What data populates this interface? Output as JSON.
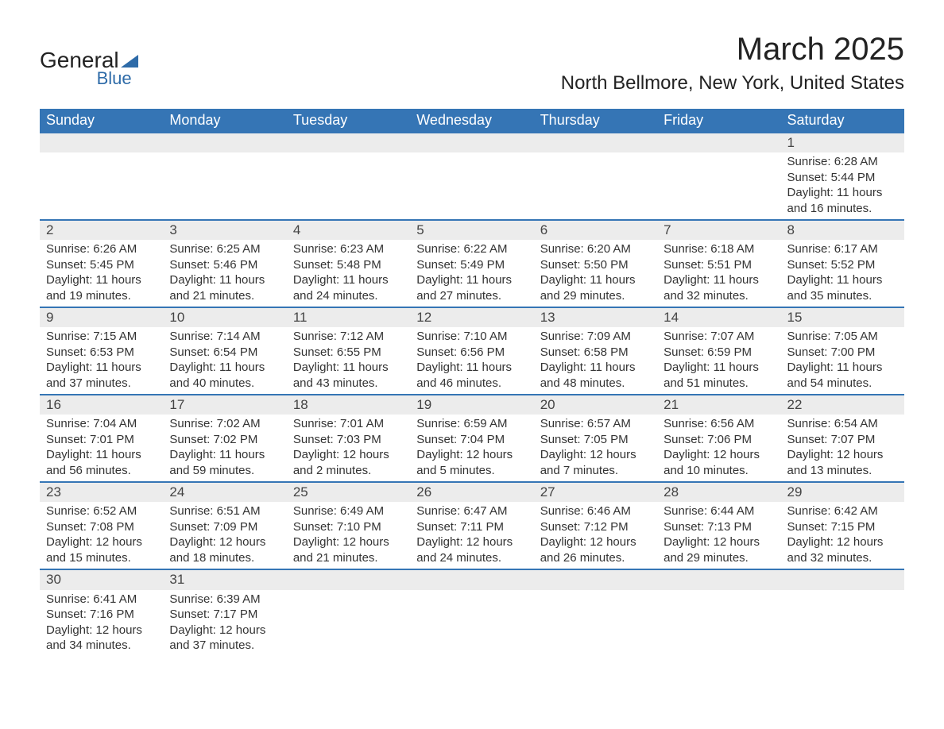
{
  "logo": {
    "word1": "General",
    "word2": "Blue"
  },
  "title": "March 2025",
  "location": "North Bellmore, New York, United States",
  "colors": {
    "header_bg": "#3575b5",
    "header_text": "#ffffff",
    "daynum_bg": "#ececec",
    "row_border": "#3575b5",
    "text": "#333333",
    "logo_accent": "#2e6ba8",
    "background": "#ffffff"
  },
  "typography": {
    "title_fontsize": 40,
    "location_fontsize": 24,
    "header_fontsize": 18,
    "cell_fontsize": 15
  },
  "day_headers": [
    "Sunday",
    "Monday",
    "Tuesday",
    "Wednesday",
    "Thursday",
    "Friday",
    "Saturday"
  ],
  "weeks": [
    [
      null,
      null,
      null,
      null,
      null,
      null,
      {
        "n": "1",
        "rise": "Sunrise: 6:28 AM",
        "set": "Sunset: 5:44 PM",
        "d1": "Daylight: 11 hours",
        "d2": "and 16 minutes."
      }
    ],
    [
      {
        "n": "2",
        "rise": "Sunrise: 6:26 AM",
        "set": "Sunset: 5:45 PM",
        "d1": "Daylight: 11 hours",
        "d2": "and 19 minutes."
      },
      {
        "n": "3",
        "rise": "Sunrise: 6:25 AM",
        "set": "Sunset: 5:46 PM",
        "d1": "Daylight: 11 hours",
        "d2": "and 21 minutes."
      },
      {
        "n": "4",
        "rise": "Sunrise: 6:23 AM",
        "set": "Sunset: 5:48 PM",
        "d1": "Daylight: 11 hours",
        "d2": "and 24 minutes."
      },
      {
        "n": "5",
        "rise": "Sunrise: 6:22 AM",
        "set": "Sunset: 5:49 PM",
        "d1": "Daylight: 11 hours",
        "d2": "and 27 minutes."
      },
      {
        "n": "6",
        "rise": "Sunrise: 6:20 AM",
        "set": "Sunset: 5:50 PM",
        "d1": "Daylight: 11 hours",
        "d2": "and 29 minutes."
      },
      {
        "n": "7",
        "rise": "Sunrise: 6:18 AM",
        "set": "Sunset: 5:51 PM",
        "d1": "Daylight: 11 hours",
        "d2": "and 32 minutes."
      },
      {
        "n": "8",
        "rise": "Sunrise: 6:17 AM",
        "set": "Sunset: 5:52 PM",
        "d1": "Daylight: 11 hours",
        "d2": "and 35 minutes."
      }
    ],
    [
      {
        "n": "9",
        "rise": "Sunrise: 7:15 AM",
        "set": "Sunset: 6:53 PM",
        "d1": "Daylight: 11 hours",
        "d2": "and 37 minutes."
      },
      {
        "n": "10",
        "rise": "Sunrise: 7:14 AM",
        "set": "Sunset: 6:54 PM",
        "d1": "Daylight: 11 hours",
        "d2": "and 40 minutes."
      },
      {
        "n": "11",
        "rise": "Sunrise: 7:12 AM",
        "set": "Sunset: 6:55 PM",
        "d1": "Daylight: 11 hours",
        "d2": "and 43 minutes."
      },
      {
        "n": "12",
        "rise": "Sunrise: 7:10 AM",
        "set": "Sunset: 6:56 PM",
        "d1": "Daylight: 11 hours",
        "d2": "and 46 minutes."
      },
      {
        "n": "13",
        "rise": "Sunrise: 7:09 AM",
        "set": "Sunset: 6:58 PM",
        "d1": "Daylight: 11 hours",
        "d2": "and 48 minutes."
      },
      {
        "n": "14",
        "rise": "Sunrise: 7:07 AM",
        "set": "Sunset: 6:59 PM",
        "d1": "Daylight: 11 hours",
        "d2": "and 51 minutes."
      },
      {
        "n": "15",
        "rise": "Sunrise: 7:05 AM",
        "set": "Sunset: 7:00 PM",
        "d1": "Daylight: 11 hours",
        "d2": "and 54 minutes."
      }
    ],
    [
      {
        "n": "16",
        "rise": "Sunrise: 7:04 AM",
        "set": "Sunset: 7:01 PM",
        "d1": "Daylight: 11 hours",
        "d2": "and 56 minutes."
      },
      {
        "n": "17",
        "rise": "Sunrise: 7:02 AM",
        "set": "Sunset: 7:02 PM",
        "d1": "Daylight: 11 hours",
        "d2": "and 59 minutes."
      },
      {
        "n": "18",
        "rise": "Sunrise: 7:01 AM",
        "set": "Sunset: 7:03 PM",
        "d1": "Daylight: 12 hours",
        "d2": "and 2 minutes."
      },
      {
        "n": "19",
        "rise": "Sunrise: 6:59 AM",
        "set": "Sunset: 7:04 PM",
        "d1": "Daylight: 12 hours",
        "d2": "and 5 minutes."
      },
      {
        "n": "20",
        "rise": "Sunrise: 6:57 AM",
        "set": "Sunset: 7:05 PM",
        "d1": "Daylight: 12 hours",
        "d2": "and 7 minutes."
      },
      {
        "n": "21",
        "rise": "Sunrise: 6:56 AM",
        "set": "Sunset: 7:06 PM",
        "d1": "Daylight: 12 hours",
        "d2": "and 10 minutes."
      },
      {
        "n": "22",
        "rise": "Sunrise: 6:54 AM",
        "set": "Sunset: 7:07 PM",
        "d1": "Daylight: 12 hours",
        "d2": "and 13 minutes."
      }
    ],
    [
      {
        "n": "23",
        "rise": "Sunrise: 6:52 AM",
        "set": "Sunset: 7:08 PM",
        "d1": "Daylight: 12 hours",
        "d2": "and 15 minutes."
      },
      {
        "n": "24",
        "rise": "Sunrise: 6:51 AM",
        "set": "Sunset: 7:09 PM",
        "d1": "Daylight: 12 hours",
        "d2": "and 18 minutes."
      },
      {
        "n": "25",
        "rise": "Sunrise: 6:49 AM",
        "set": "Sunset: 7:10 PM",
        "d1": "Daylight: 12 hours",
        "d2": "and 21 minutes."
      },
      {
        "n": "26",
        "rise": "Sunrise: 6:47 AM",
        "set": "Sunset: 7:11 PM",
        "d1": "Daylight: 12 hours",
        "d2": "and 24 minutes."
      },
      {
        "n": "27",
        "rise": "Sunrise: 6:46 AM",
        "set": "Sunset: 7:12 PM",
        "d1": "Daylight: 12 hours",
        "d2": "and 26 minutes."
      },
      {
        "n": "28",
        "rise": "Sunrise: 6:44 AM",
        "set": "Sunset: 7:13 PM",
        "d1": "Daylight: 12 hours",
        "d2": "and 29 minutes."
      },
      {
        "n": "29",
        "rise": "Sunrise: 6:42 AM",
        "set": "Sunset: 7:15 PM",
        "d1": "Daylight: 12 hours",
        "d2": "and 32 minutes."
      }
    ],
    [
      {
        "n": "30",
        "rise": "Sunrise: 6:41 AM",
        "set": "Sunset: 7:16 PM",
        "d1": "Daylight: 12 hours",
        "d2": "and 34 minutes."
      },
      {
        "n": "31",
        "rise": "Sunrise: 6:39 AM",
        "set": "Sunset: 7:17 PM",
        "d1": "Daylight: 12 hours",
        "d2": "and 37 minutes."
      },
      null,
      null,
      null,
      null,
      null
    ]
  ]
}
